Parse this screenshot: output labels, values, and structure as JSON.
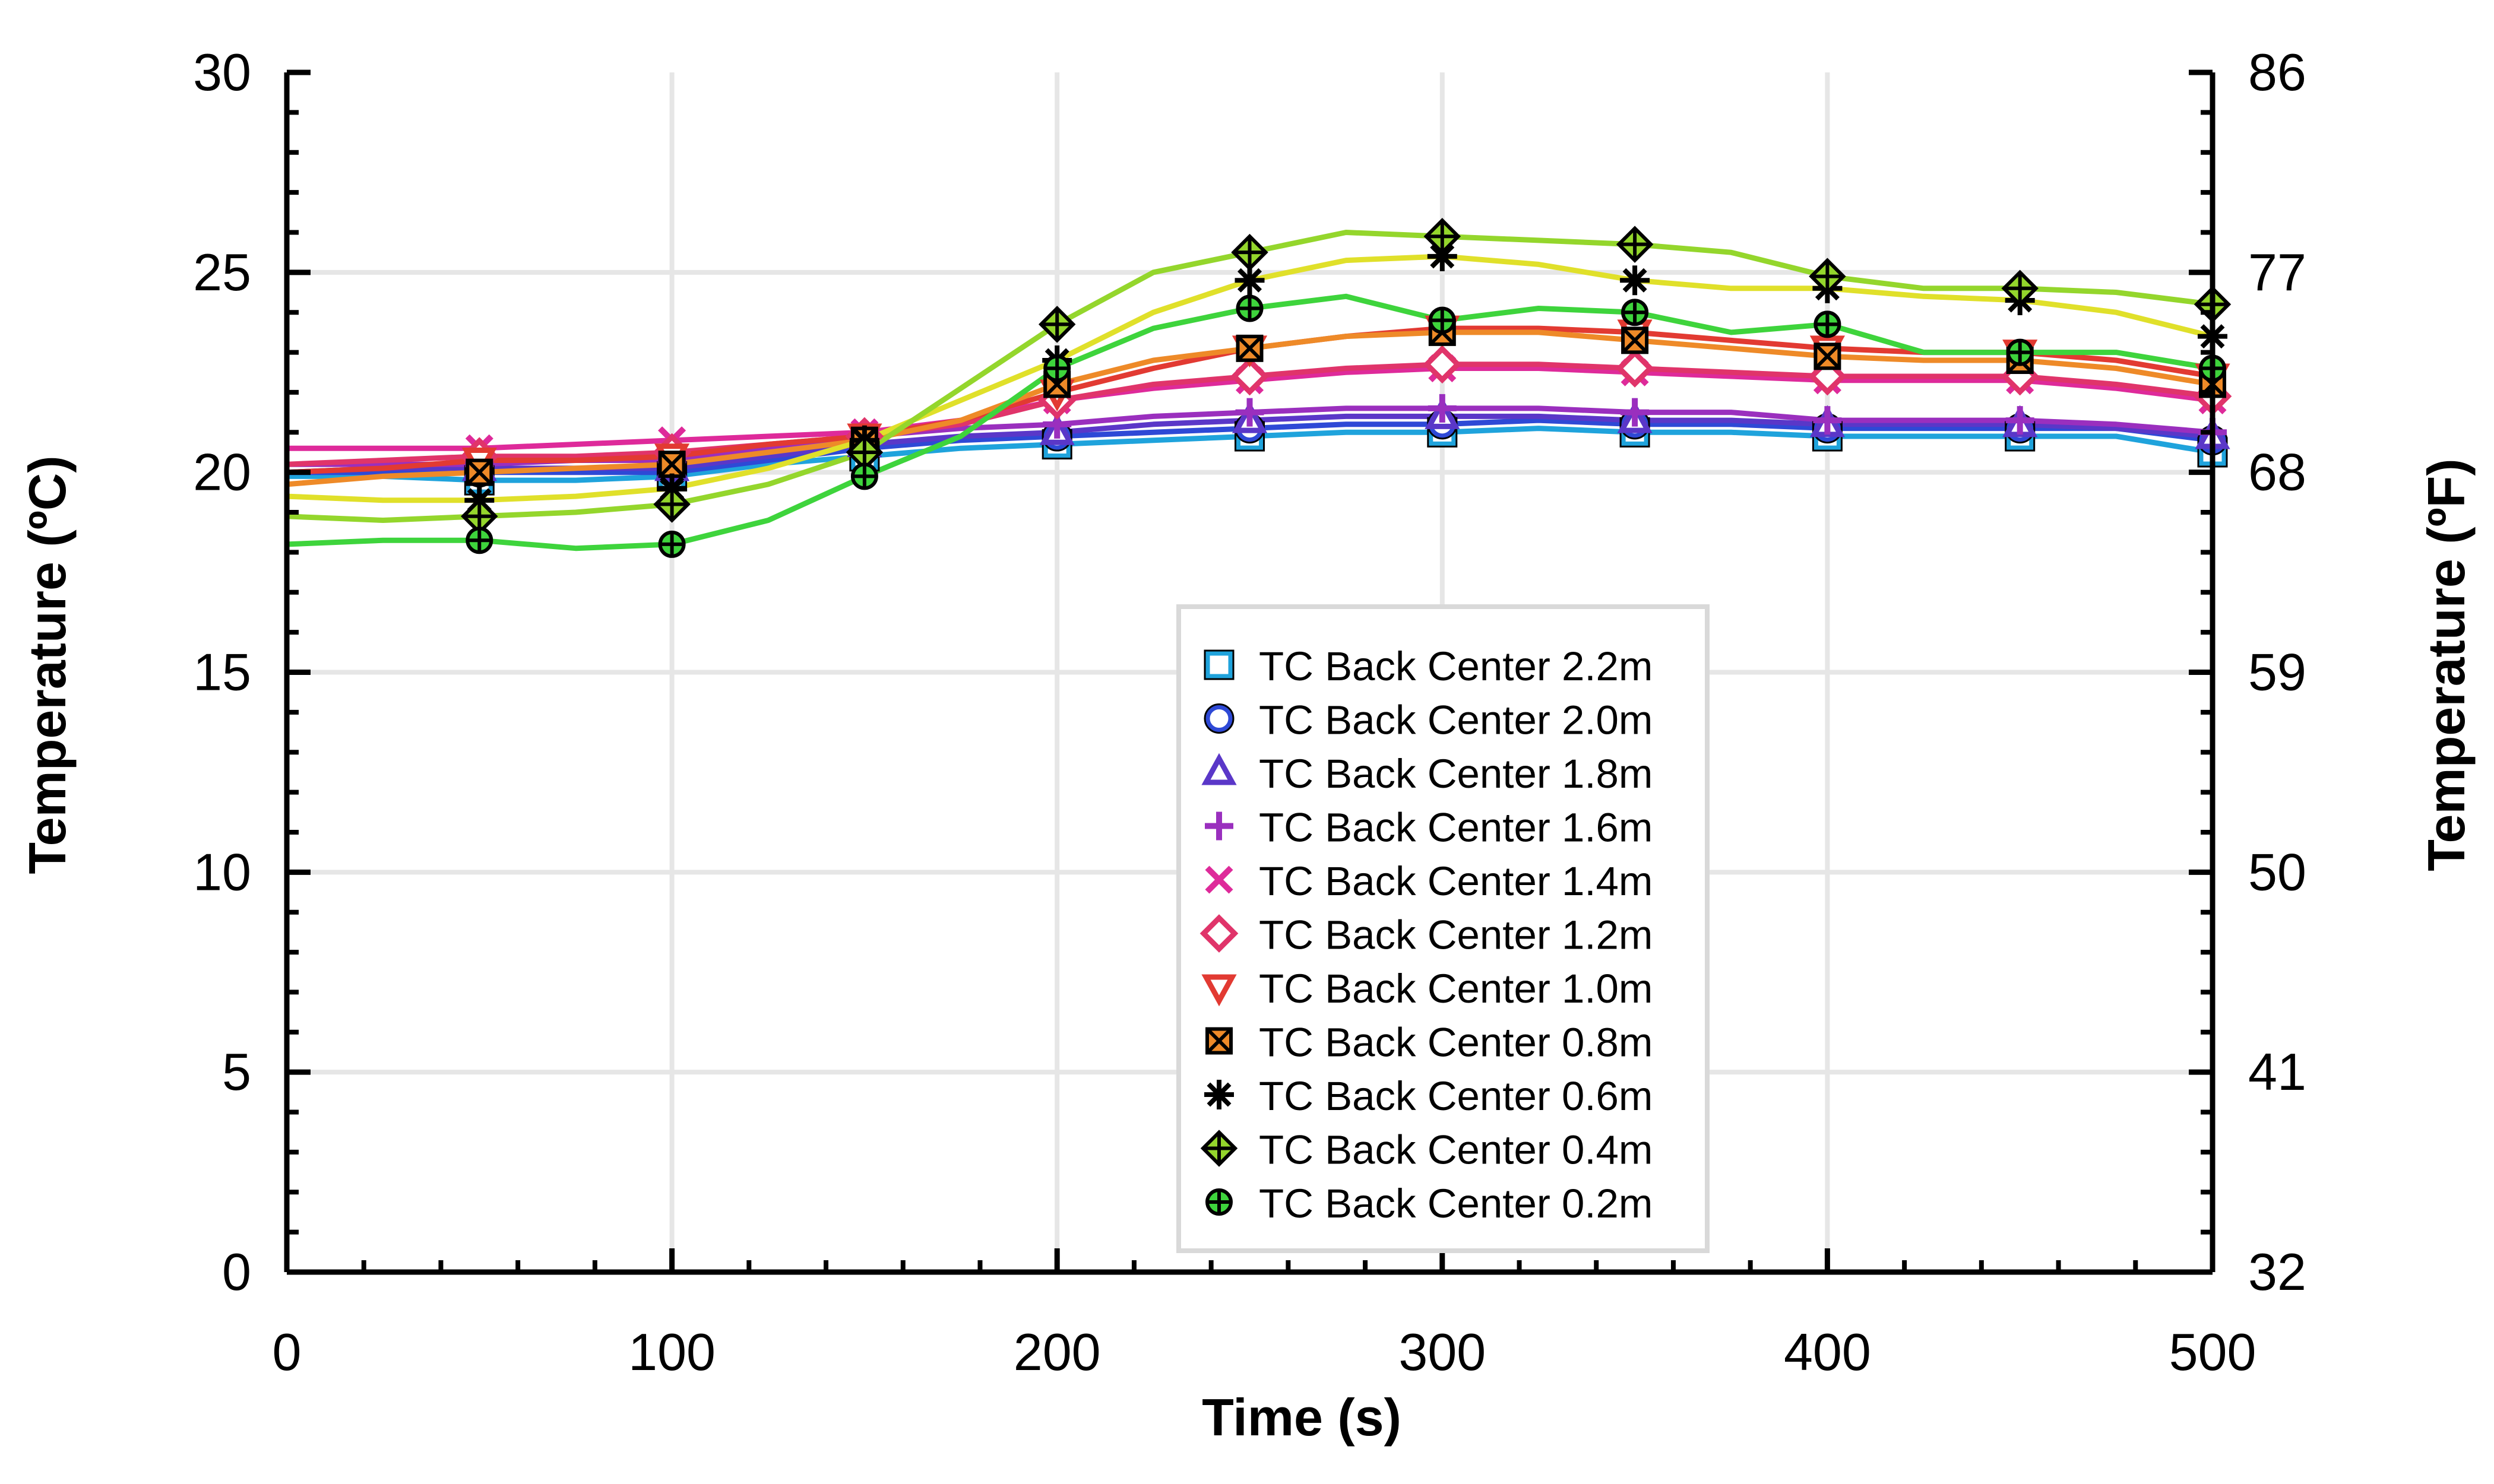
{
  "chart_data": {
    "type": "line",
    "xlabel": "Time (s)",
    "ylabel": "Temperature (ºC)",
    "ylabel_right": "Temperature (ºF)",
    "xlim": [
      0,
      500
    ],
    "ylim": [
      0,
      30
    ],
    "xticks": [
      0,
      100,
      200,
      300,
      400,
      500
    ],
    "yticks": [
      0,
      5,
      10,
      15,
      20,
      25,
      30
    ],
    "yticks_right": [
      32,
      41,
      50,
      59,
      68,
      77,
      86
    ],
    "grid": true,
    "legend_position": "lower-right",
    "x": [
      0,
      25,
      50,
      75,
      100,
      125,
      150,
      175,
      200,
      225,
      250,
      275,
      300,
      325,
      350,
      375,
      400,
      425,
      450,
      475,
      500
    ],
    "marker_x": [
      50,
      100,
      150,
      200,
      250,
      300,
      350,
      400,
      450,
      500
    ],
    "series": [
      {
        "name": "TC Back Center 2.2m",
        "color": "#1fa3dc",
        "marker": "square",
        "values": [
          19.9,
          19.9,
          19.8,
          19.8,
          19.9,
          20.2,
          20.4,
          20.6,
          20.7,
          20.8,
          20.9,
          21.0,
          21.0,
          21.1,
          21.0,
          21.0,
          20.9,
          20.9,
          20.9,
          20.9,
          20.5
        ]
      },
      {
        "name": "TC Back Center 2.0m",
        "color": "#2e49d6",
        "marker": "circle",
        "values": [
          20.0,
          20.0,
          20.0,
          20.0,
          20.0,
          20.3,
          20.6,
          20.8,
          20.9,
          21.0,
          21.1,
          21.2,
          21.2,
          21.3,
          21.2,
          21.2,
          21.1,
          21.1,
          21.1,
          21.1,
          20.8
        ]
      },
      {
        "name": "TC Back Center 1.8m",
        "color": "#5a37c8",
        "marker": "triangle-up",
        "values": [
          20.0,
          20.1,
          20.1,
          20.1,
          20.1,
          20.4,
          20.7,
          20.9,
          21.0,
          21.2,
          21.3,
          21.4,
          21.4,
          21.4,
          21.3,
          21.3,
          21.2,
          21.2,
          21.2,
          21.1,
          20.9
        ]
      },
      {
        "name": "TC Back Center 1.6m",
        "color": "#9a2fbe",
        "marker": "plus",
        "values": [
          20.2,
          20.2,
          20.2,
          20.3,
          20.3,
          20.6,
          20.9,
          21.1,
          21.2,
          21.4,
          21.5,
          21.6,
          21.6,
          21.6,
          21.5,
          21.5,
          21.3,
          21.3,
          21.3,
          21.2,
          21.0
        ]
      },
      {
        "name": "TC Back Center 1.4m",
        "color": "#de2a9a",
        "marker": "x",
        "values": [
          20.6,
          20.6,
          20.6,
          20.7,
          20.8,
          20.9,
          21.0,
          21.3,
          21.8,
          22.1,
          22.3,
          22.5,
          22.6,
          22.6,
          22.5,
          22.4,
          22.3,
          22.3,
          22.3,
          22.1,
          21.8
        ]
      },
      {
        "name": "TC Back Center 1.2m",
        "color": "#e0346a",
        "marker": "diamond",
        "values": [
          20.2,
          20.3,
          20.4,
          20.4,
          20.5,
          20.7,
          20.9,
          21.2,
          21.8,
          22.2,
          22.4,
          22.6,
          22.7,
          22.7,
          22.6,
          22.5,
          22.4,
          22.4,
          22.4,
          22.2,
          21.9
        ]
      },
      {
        "name": "TC Back Center 1.0m",
        "color": "#e23a32",
        "marker": "triangle-down",
        "values": [
          20.0,
          20.1,
          20.3,
          20.3,
          20.4,
          20.7,
          20.9,
          21.3,
          22.0,
          22.6,
          23.1,
          23.4,
          23.6,
          23.6,
          23.5,
          23.3,
          23.1,
          23.0,
          23.0,
          22.8,
          22.4
        ]
      },
      {
        "name": "TC Back Center 0.8m",
        "color": "#ee8a28",
        "marker": "square-x",
        "values": [
          19.7,
          19.9,
          20.0,
          20.1,
          20.2,
          20.5,
          20.8,
          21.3,
          22.2,
          22.8,
          23.1,
          23.4,
          23.5,
          23.5,
          23.3,
          23.1,
          22.9,
          22.8,
          22.8,
          22.6,
          22.2
        ]
      },
      {
        "name": "TC Back Center 0.6m",
        "color": "#e0e02a",
        "marker": "asterisk",
        "values": [
          19.4,
          19.3,
          19.3,
          19.4,
          19.6,
          20.1,
          20.8,
          21.8,
          22.8,
          24.0,
          24.8,
          25.3,
          25.4,
          25.2,
          24.8,
          24.6,
          24.6,
          24.4,
          24.3,
          24.0,
          23.4
        ]
      },
      {
        "name": "TC Back Center 0.4m",
        "color": "#94d62c",
        "marker": "diamond-plus",
        "values": [
          18.9,
          18.8,
          18.9,
          19.0,
          19.2,
          19.7,
          20.5,
          22.1,
          23.7,
          25.0,
          25.5,
          26.0,
          25.9,
          25.8,
          25.7,
          25.5,
          24.9,
          24.6,
          24.6,
          24.5,
          24.2
        ]
      },
      {
        "name": "TC Back Center 0.2m",
        "color": "#3ed43c",
        "marker": "circle-plus",
        "values": [
          18.2,
          18.3,
          18.3,
          18.1,
          18.2,
          18.8,
          19.9,
          20.9,
          22.6,
          23.6,
          24.1,
          24.4,
          23.8,
          24.1,
          24.0,
          23.5,
          23.7,
          23.0,
          23.0,
          23.0,
          22.6
        ]
      }
    ]
  }
}
